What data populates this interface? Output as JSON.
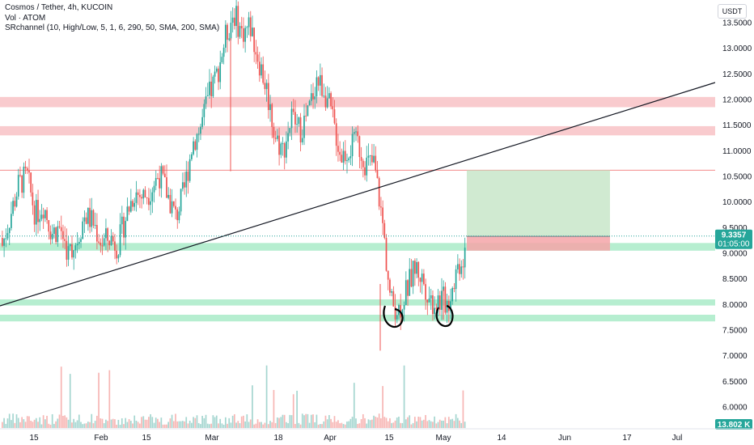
{
  "chart_data": {
    "type": "candlestick",
    "title": "Cosmos / Tether, 4h, KUCOIN",
    "legend": {
      "line1": "Cosmos / Tether, 4h, KUCOIN",
      "line2": "Vol · ATOM",
      "line3": "SRchannel (10, High/Low, 5, 1, 6, 290, 50, SMA, 200, SMA)"
    },
    "currency": "USDT",
    "ylim": [
      5.6,
      13.85
    ],
    "y_ticks": [
      "13.5000",
      "13.0000",
      "12.5000",
      "12.0000",
      "11.5000",
      "11.0000",
      "10.5000",
      "10.0000",
      "9.5000",
      "9.0000",
      "8.5000",
      "8.0000",
      "7.5000",
      "7.0000",
      "6.5000",
      "6.0000"
    ],
    "x_ticks": [
      "15",
      "Feb",
      "15",
      "Mar",
      "18",
      "Apr",
      "15",
      "May",
      "14",
      "Jun",
      "17",
      "Jul"
    ],
    "last_price": "9.3357",
    "countdown": "01:05:00",
    "volume_label": "13.802 K",
    "price_series": [
      [
        9.3,
        9.0
      ],
      [
        9.6,
        9.9
      ],
      [
        10.3,
        10.4
      ],
      [
        10.8,
        10.2
      ],
      [
        9.9,
        9.6
      ],
      [
        9.8,
        10.1
      ],
      [
        9.6,
        9.2
      ],
      [
        9.4,
        9.6
      ],
      [
        9.2,
        8.8
      ],
      [
        9.1,
        9.4
      ],
      [
        9.6,
        9.9
      ],
      [
        9.7,
        9.5
      ],
      [
        9.3,
        9.1
      ],
      [
        9.2,
        9.4
      ],
      [
        9.0,
        9.3
      ],
      [
        9.6,
        9.9
      ],
      [
        10.1,
        10.3
      ],
      [
        10.2,
        10.0
      ],
      [
        10.1,
        10.4
      ],
      [
        10.5,
        10.6
      ],
      [
        10.3,
        10.0
      ],
      [
        9.8,
        9.6
      ],
      [
        10.0,
        10.4
      ],
      [
        10.9,
        11.4
      ],
      [
        11.2,
        11.7
      ],
      [
        11.9,
        12.2
      ],
      [
        12.4,
        12.6
      ],
      [
        13.0,
        13.4
      ],
      [
        13.6,
        13.8
      ],
      [
        13.5,
        13.1
      ],
      [
        13.3,
        13.6
      ],
      [
        13.0,
        12.6
      ],
      [
        12.4,
        12.0
      ],
      [
        11.6,
        11.0
      ],
      [
        10.9,
        11.1
      ],
      [
        11.5,
        11.8
      ],
      [
        11.6,
        11.2
      ],
      [
        11.5,
        11.9
      ],
      [
        12.2,
        12.6
      ],
      [
        12.4,
        12.0
      ],
      [
        11.8,
        11.4
      ],
      [
        11.0,
        10.8
      ],
      [
        10.9,
        11.2
      ],
      [
        11.3,
        11.0
      ],
      [
        10.8,
        10.7
      ],
      [
        10.9,
        10.6
      ],
      [
        10.4,
        8.9
      ],
      [
        8.2,
        7.9
      ],
      [
        7.8,
        8.0
      ],
      [
        8.2,
        8.4
      ],
      [
        8.6,
        8.9
      ],
      [
        8.6,
        8.3
      ],
      [
        8.1,
        8.0
      ],
      [
        8.2,
        8.0
      ],
      [
        7.9,
        8.2
      ],
      [
        8.6,
        8.8
      ],
      [
        8.7,
        9.3
      ]
    ],
    "horizontal_zones": [
      {
        "low": 11.85,
        "high": 12.05,
        "color": "#f7b9bd"
      },
      {
        "low": 11.3,
        "high": 11.48,
        "color": "#f7b9bd"
      },
      {
        "low": 9.05,
        "high": 9.2,
        "color": "#9ee8c0"
      },
      {
        "low": 7.98,
        "high": 8.1,
        "color": "#9ee8c0"
      },
      {
        "low": 7.67,
        "high": 7.8,
        "color": "#9ee8c0"
      }
    ],
    "resistance_line": 10.62,
    "trendline": {
      "from": [
        0,
        7.95
      ],
      "to": [
        12.3,
        1
      ]
    },
    "position": {
      "entry": 9.33,
      "target": 10.62,
      "stop": 9.05
    },
    "colors": {
      "up": "#26a69a",
      "down": "#ef5350",
      "line": "#131722",
      "price_tag": "#26a69a"
    }
  }
}
